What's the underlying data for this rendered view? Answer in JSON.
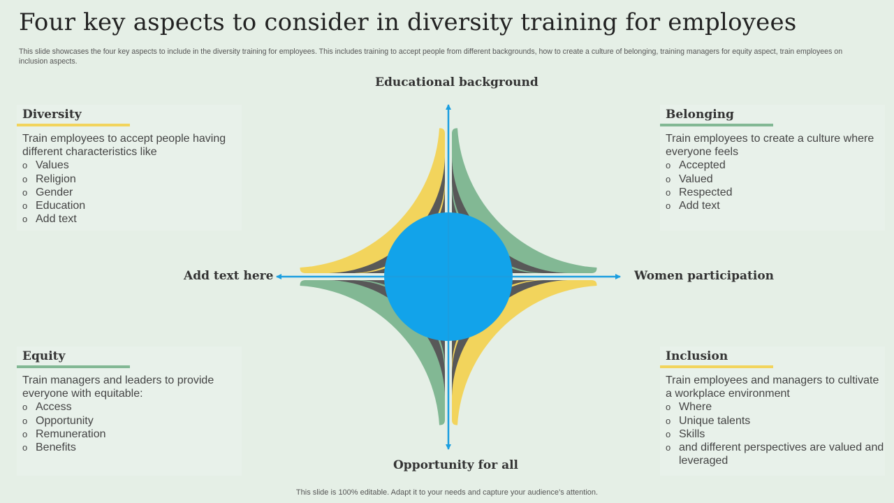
{
  "title": "Four key aspects to consider in diversity training for employees",
  "subtitle": "This slide showcases the four key aspects to include in the diversity training for employees. This includes training to accept people from different backgrounds, how to create a culture of belonging, training managers for equity aspect, train employees on inclusion aspects.",
  "axis_labels": {
    "top": "Educational background",
    "bottom": "Opportunity for all",
    "left": "Add text here",
    "right": "Women participation"
  },
  "colors": {
    "yellow": "#f2d45c",
    "green": "#82b894",
    "dark": "#585858",
    "blue": "#12a3ea",
    "background": "#e5efe6"
  },
  "panels": {
    "diversity": {
      "heading": "Diversity",
      "accent": "#f2d45c",
      "intro": "Train employees to accept people having different characteristics like",
      "items": [
        "Values",
        "Religion",
        "Gender",
        "Education",
        "Add text"
      ]
    },
    "belonging": {
      "heading": "Belonging",
      "accent": "#82b894",
      "intro": "Train employees to create a culture where everyone feels",
      "items": [
        "Accepted",
        "Valued",
        "Respected",
        "Add text"
      ]
    },
    "equity": {
      "heading": "Equity",
      "accent": "#82b894",
      "intro": "Train managers and leaders to provide everyone with equitable:",
      "items": [
        "Access",
        "Opportunity",
        "Remuneration",
        "Benefits"
      ]
    },
    "inclusion": {
      "heading": "Inclusion",
      "accent": "#f2d45c",
      "intro": "Train employees and managers to cultivate a workplace environment",
      "items": [
        "Where",
        "Unique talents",
        "Skills",
        "and different perspectives are valued and leveraged"
      ]
    }
  },
  "bullet_glyph": "o",
  "footer": "This slide is 100% editable. Adapt it to your needs and capture your audience’s attention."
}
